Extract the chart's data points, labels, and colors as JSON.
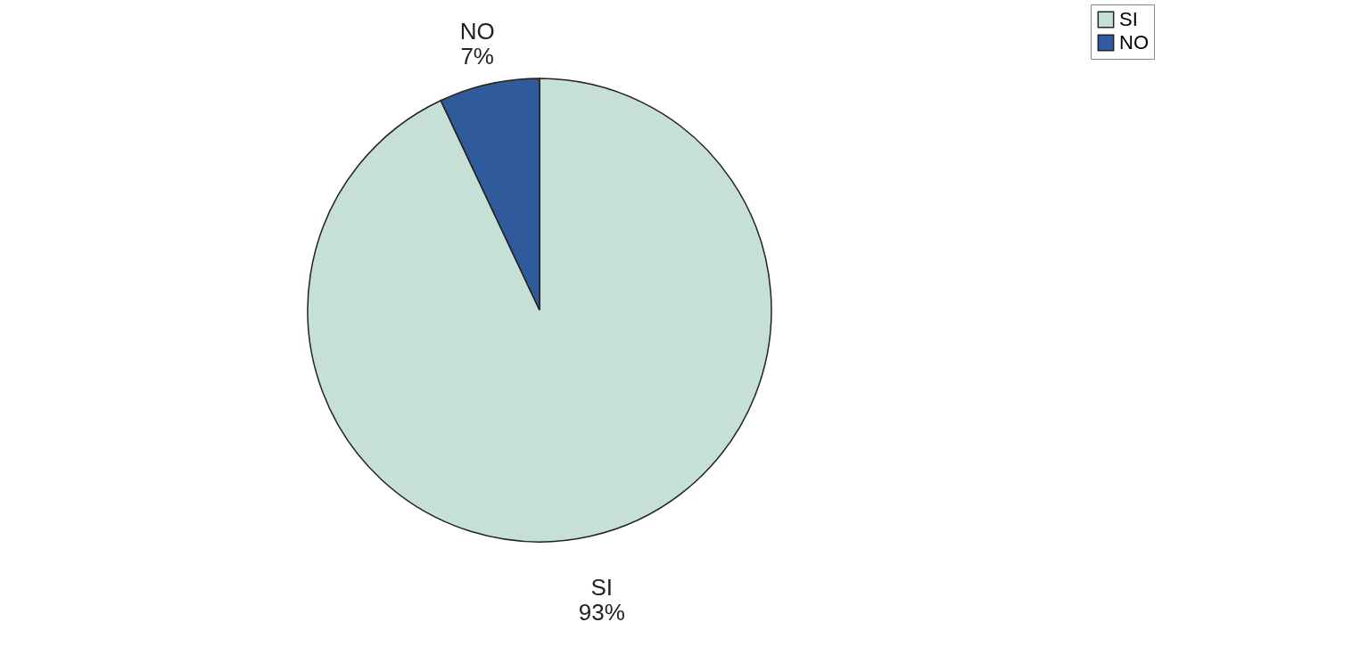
{
  "chart_data": {
    "type": "pie",
    "categories": [
      "SI",
      "NO"
    ],
    "values": [
      93,
      7
    ],
    "colors": [
      "#c6e0d6",
      "#2f5b9c"
    ],
    "value_labels": [
      "93%",
      "7%"
    ],
    "legend": "right"
  }
}
